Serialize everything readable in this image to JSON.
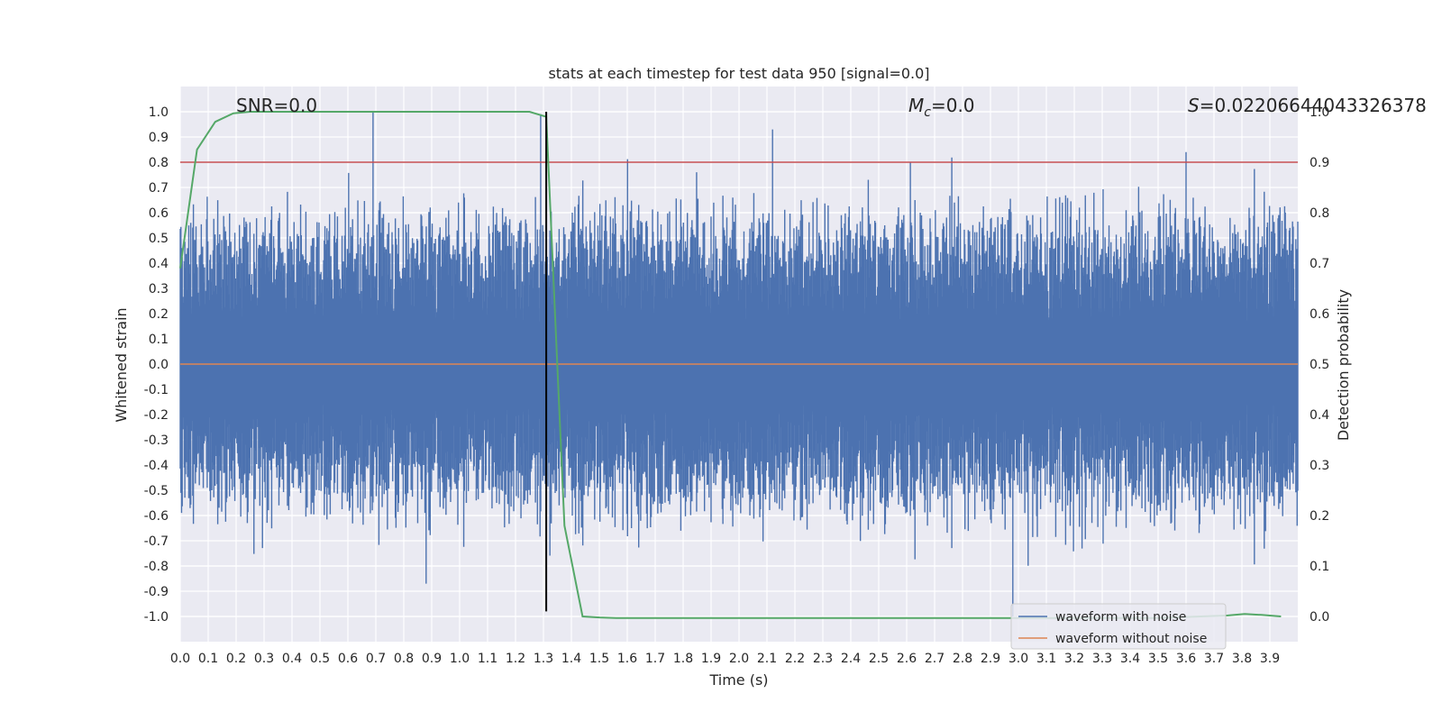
{
  "chart_data": {
    "type": "line",
    "title": "stats at each timestep for test data 950 [signal=0.0]",
    "xlabel": "Time (s)",
    "ylabel": "Whitened strain",
    "y2label": "Detection probability",
    "xlim": [
      0.0,
      4.0
    ],
    "ylim": [
      -1.1,
      1.1
    ],
    "y2lim": [
      -0.05,
      1.05
    ],
    "xticks": [
      "0.0",
      "0.1",
      "0.2",
      "0.3",
      "0.4",
      "0.5",
      "0.6",
      "0.7",
      "0.8",
      "0.9",
      "1.0",
      "1.1",
      "1.2",
      "1.3",
      "1.4",
      "1.5",
      "1.6",
      "1.7",
      "1.8",
      "1.9",
      "2.0",
      "2.1",
      "2.2",
      "2.3",
      "2.4",
      "2.5",
      "2.6",
      "2.7",
      "2.8",
      "2.9",
      "3.0",
      "3.1",
      "3.2",
      "3.3",
      "3.4",
      "3.5",
      "3.6",
      "3.7",
      "3.8",
      "3.9"
    ],
    "yticks": [
      "1.0",
      "0.9",
      "0.8",
      "0.7",
      "0.6",
      "0.5",
      "0.4",
      "0.3",
      "0.2",
      "0.1",
      "0.0",
      "-0.1",
      "-0.2",
      "-0.3",
      "-0.4",
      "-0.5",
      "-0.6",
      "-0.7",
      "-0.8",
      "-0.9",
      "-1.0"
    ],
    "y2ticks": [
      "1.0",
      "0.9",
      "0.8",
      "0.7",
      "0.6",
      "0.5",
      "0.4",
      "0.3",
      "0.2",
      "0.1",
      "0.0"
    ],
    "grid": true,
    "annotations": {
      "snr": "SNR=0.0",
      "mc_symbol": "M",
      "mc_sub": "c",
      "mc_value": "=0.0",
      "s_symbol": "S",
      "s_value": "=0.02206644043326378"
    },
    "threshold": {
      "axis": "y2",
      "value": 0.9,
      "color": "#c44e52"
    },
    "vline": {
      "x": 1.31,
      "ymin": -0.98,
      "ymax": 1.0,
      "color": "#000000"
    },
    "series": [
      {
        "name": "waveform with noise",
        "color": "#4c72b0",
        "axis": "y",
        "kind": "noise",
        "amplitude_envelope": 0.6,
        "peaks": [
          [
            0.69,
            1.0
          ],
          [
            1.29,
            0.99
          ],
          [
            2.12,
            0.93
          ],
          [
            3.6,
            0.84
          ],
          [
            2.98,
            -1.0
          ],
          [
            0.88,
            -0.87
          ]
        ]
      },
      {
        "name": "waveform without noise",
        "color": "#dd8452",
        "axis": "y",
        "x": [
          0.0,
          4.0
        ],
        "values": [
          0.0,
          0.0
        ]
      },
      {
        "name": "detection probability",
        "color": "#55a868",
        "axis": "y2",
        "legend": false,
        "x": [
          0.0,
          0.06,
          0.125,
          0.19,
          0.25,
          0.31,
          0.5,
          1.0,
          1.25,
          1.31,
          1.375,
          1.44,
          1.5,
          1.56,
          2.0,
          3.0,
          3.5,
          3.75,
          3.81,
          3.87,
          3.94
        ],
        "values": [
          0.69,
          0.925,
          0.98,
          0.997,
          1.0,
          1.0,
          1.0,
          1.0,
          1.0,
          0.99,
          0.18,
          0.0,
          -0.002,
          -0.003,
          -0.003,
          -0.003,
          -0.003,
          0.002,
          0.005,
          0.003,
          0.0
        ]
      }
    ],
    "legend": {
      "position": "lower-right",
      "entries": [
        {
          "label": "waveform with noise",
          "color": "#4c72b0"
        },
        {
          "label": "waveform without noise",
          "color": "#dd8452"
        }
      ]
    }
  }
}
